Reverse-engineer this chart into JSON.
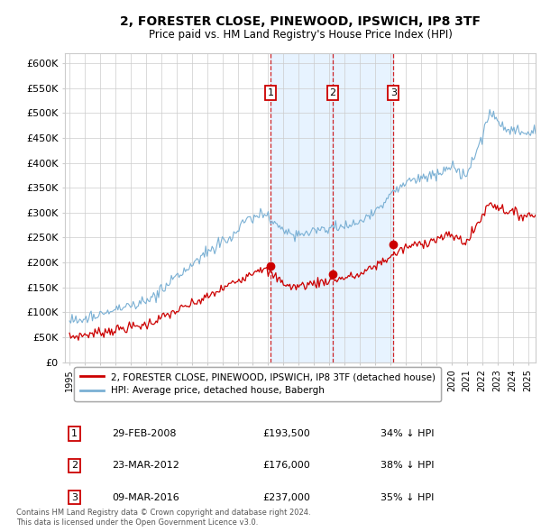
{
  "title": "2, FORESTER CLOSE, PINEWOOD, IPSWICH, IP8 3TF",
  "subtitle": "Price paid vs. HM Land Registry's House Price Index (HPI)",
  "legend_property_label": "2, FORESTER CLOSE, PINEWOOD, IPSWICH, IP8 3TF (detached house)",
  "legend_hpi_label": "HPI: Average price, detached house, Babergh",
  "property_color": "#cc0000",
  "hpi_color": "#7ab0d4",
  "vline_color": "#cc0000",
  "vline_bg": "#ddeeff",
  "transactions": [
    {
      "num": 1,
      "date": "29-FEB-2008",
      "price": 193500,
      "pct": "34%",
      "x_year": 2008.16
    },
    {
      "num": 2,
      "date": "23-MAR-2012",
      "price": 176000,
      "pct": "38%",
      "x_year": 2012.22
    },
    {
      "num": 3,
      "date": "09-MAR-2016",
      "price": 237000,
      "pct": "35%",
      "x_year": 2016.19
    }
  ],
  "footer_line1": "Contains HM Land Registry data © Crown copyright and database right 2024.",
  "footer_line2": "This data is licensed under the Open Government Licence v3.0.",
  "ylim": [
    0,
    620000
  ],
  "yticks": [
    0,
    50000,
    100000,
    150000,
    200000,
    250000,
    300000,
    350000,
    400000,
    450000,
    500000,
    550000,
    600000
  ],
  "ytick_labels": [
    "£0",
    "£50K",
    "£100K",
    "£150K",
    "£200K",
    "£250K",
    "£300K",
    "£350K",
    "£400K",
    "£450K",
    "£500K",
    "£550K",
    "£600K"
  ],
  "xmin": 1994.7,
  "xmax": 2025.5
}
